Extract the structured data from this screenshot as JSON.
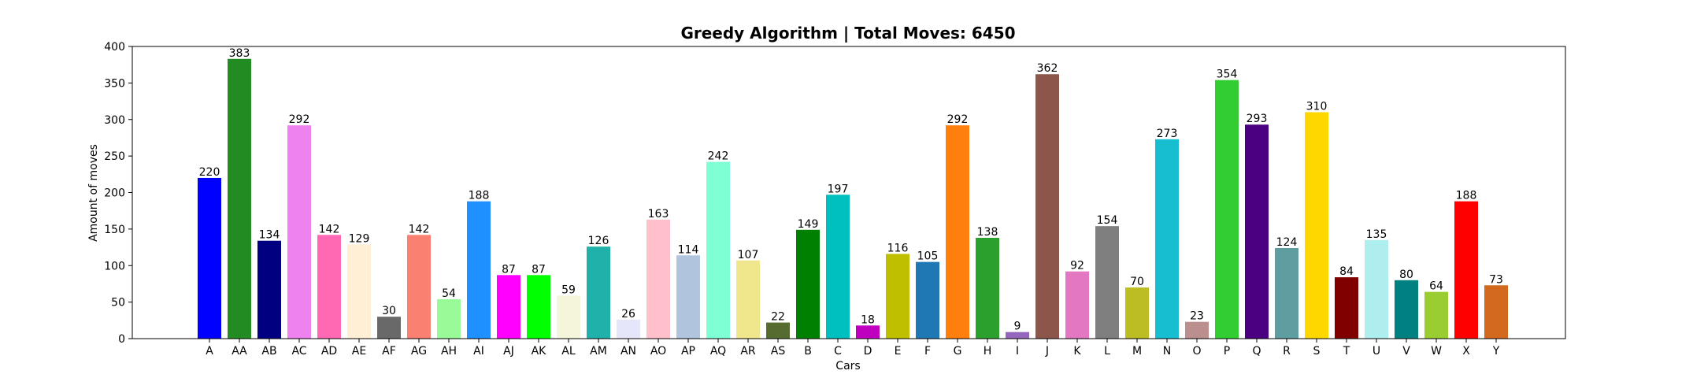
{
  "chart_data": {
    "type": "bar",
    "title": "Greedy Algorithm | Total Moves: 6450",
    "xlabel": "Cars",
    "ylabel": "Amount of moves",
    "ylim": [
      0,
      400
    ],
    "yticks": [
      0,
      50,
      100,
      150,
      200,
      250,
      300,
      350,
      400
    ],
    "grid": false,
    "categories": [
      "A",
      "AA",
      "AB",
      "AC",
      "AD",
      "AE",
      "AF",
      "AG",
      "AH",
      "AI",
      "AJ",
      "AK",
      "AL",
      "AM",
      "AN",
      "AO",
      "AP",
      "AQ",
      "AR",
      "AS",
      "B",
      "C",
      "D",
      "E",
      "F",
      "G",
      "H",
      "I",
      "J",
      "K",
      "L",
      "M",
      "N",
      "O",
      "P",
      "Q",
      "R",
      "S",
      "T",
      "U",
      "V",
      "W",
      "X",
      "Y"
    ],
    "values": [
      220,
      383,
      134,
      292,
      142,
      129,
      30,
      142,
      54,
      188,
      87,
      87,
      59,
      126,
      26,
      163,
      114,
      242,
      107,
      22,
      149,
      197,
      18,
      116,
      105,
      292,
      138,
      9,
      362,
      92,
      154,
      70,
      273,
      23,
      354,
      293,
      124,
      310,
      84,
      135,
      80,
      64,
      188,
      73
    ],
    "colors": [
      "#0000ff",
      "#228b22",
      "#000080",
      "#ee82ee",
      "#ff69b4",
      "#ffefd5",
      "#696969",
      "#fa8072",
      "#98fb98",
      "#1e90ff",
      "#ff00ff",
      "#00ff00",
      "#f5f5dc",
      "#20b2aa",
      "#e6e6fa",
      "#ffc0cb",
      "#b0c4de",
      "#7fffd4",
      "#f0e68c",
      "#556b2f",
      "#008000",
      "#00bfbf",
      "#bf00bf",
      "#bfbf00",
      "#1f77b4",
      "#ff7f0e",
      "#2ca02c",
      "#9467bd",
      "#8c564b",
      "#e377c2",
      "#7f7f7f",
      "#bcbd22",
      "#17becf",
      "#bc8f8f",
      "#32cd32",
      "#4b0082",
      "#5f9ea0",
      "#ffd700",
      "#800000",
      "#afeeee",
      "#008080",
      "#9acd32",
      "#ff0000",
      "#d2691e"
    ]
  }
}
